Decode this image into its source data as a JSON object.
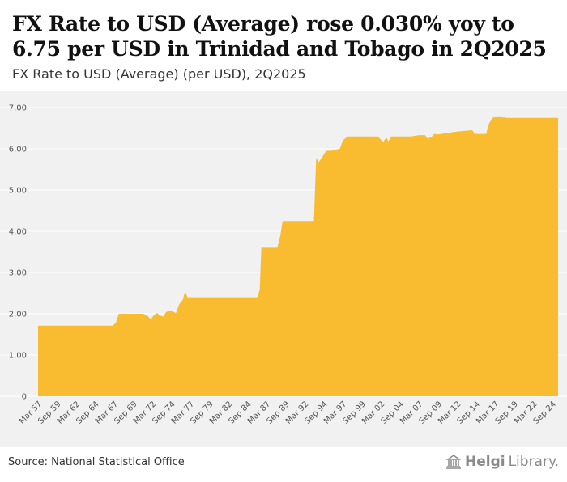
{
  "title": "FX Rate to USD (Average) rose 0.030% yoy to 6.75 per USD in Trinidad and Tobago in 2Q2025",
  "subtitle": "FX Rate to USD (Average) (per USD), 2Q2025",
  "source": "Source: National Statistical Office",
  "logo": {
    "brand": "Helgi",
    "suffix": "Library."
  },
  "colors": {
    "fill": "#f9bb2f",
    "background": "#f1f1f1",
    "grid": "#ffffff"
  },
  "chart_data": {
    "type": "area",
    "title": "FX Rate to USD (Average) rose 0.030% yoy to 6.75 per USD in Trinidad and Tobago in 2Q2025",
    "ylabel": "per USD",
    "ylim": [
      0,
      7
    ],
    "yticks": [
      "0",
      "1.00",
      "2.00",
      "3.00",
      "4.00",
      "5.00",
      "6.00",
      "7.00"
    ],
    "ytick_values": [
      0,
      1,
      2,
      3,
      4,
      5,
      6,
      7
    ],
    "xlim": [
      1957.0,
      2025.25
    ],
    "xticks": [
      "Mar 57",
      "Sep 59",
      "Mar 62",
      "Sep 64",
      "Mar 67",
      "Sep 69",
      "Mar 72",
      "Sep 74",
      "Mar 77",
      "Sep 79",
      "Mar 82",
      "Sep 84",
      "Mar 87",
      "Sep 89",
      "Mar 92",
      "Sep 94",
      "Mar 97",
      "Sep 99",
      "Mar 02",
      "Sep 04",
      "Mar 07",
      "Sep 09",
      "Mar 12",
      "Sep 14",
      "Mar 17",
      "Sep 19",
      "Mar 22",
      "Sep 24"
    ],
    "xtick_values": [
      1957.0,
      1959.5,
      1962.0,
      1964.5,
      1967.0,
      1969.5,
      1972.0,
      1974.5,
      1977.0,
      1979.5,
      1982.0,
      1984.5,
      1987.0,
      1989.5,
      1992.0,
      1994.5,
      1997.0,
      1999.5,
      2002.0,
      2004.5,
      2007.0,
      2009.5,
      2012.0,
      2014.5,
      2017.0,
      2019.5,
      2022.0,
      2024.5
    ],
    "series": [
      {
        "name": "FX Rate to USD (Average)",
        "points": [
          [
            1957.0,
            1.71
          ],
          [
            1966.8,
            1.71
          ],
          [
            1967.2,
            1.78
          ],
          [
            1967.6,
            2.0
          ],
          [
            1970.8,
            2.0
          ],
          [
            1971.3,
            1.96
          ],
          [
            1971.8,
            1.86
          ],
          [
            1972.2,
            1.97
          ],
          [
            1972.6,
            2.02
          ],
          [
            1973.0,
            1.96
          ],
          [
            1973.4,
            1.93
          ],
          [
            1973.8,
            2.04
          ],
          [
            1974.3,
            2.08
          ],
          [
            1974.7,
            2.05
          ],
          [
            1975.1,
            2.02
          ],
          [
            1975.5,
            2.22
          ],
          [
            1976.0,
            2.34
          ],
          [
            1976.3,
            2.55
          ],
          [
            1976.6,
            2.4
          ],
          [
            1985.8,
            2.4
          ],
          [
            1986.1,
            2.6
          ],
          [
            1986.3,
            3.6
          ],
          [
            1988.4,
            3.6
          ],
          [
            1988.8,
            3.9
          ],
          [
            1989.1,
            4.25
          ],
          [
            1993.2,
            4.25
          ],
          [
            1993.5,
            5.78
          ],
          [
            1993.8,
            5.67
          ],
          [
            1994.3,
            5.8
          ],
          [
            1994.8,
            5.95
          ],
          [
            1995.5,
            5.95
          ],
          [
            1996.0,
            5.98
          ],
          [
            1996.6,
            6.0
          ],
          [
            1997.0,
            6.2
          ],
          [
            1997.6,
            6.3
          ],
          [
            2001.6,
            6.3
          ],
          [
            2002.0,
            6.22
          ],
          [
            2002.3,
            6.17
          ],
          [
            2002.7,
            6.27
          ],
          [
            2003.0,
            6.18
          ],
          [
            2003.3,
            6.3
          ],
          [
            2006.0,
            6.3
          ],
          [
            2007.0,
            6.33
          ],
          [
            2007.8,
            6.33
          ],
          [
            2008.1,
            6.25
          ],
          [
            2008.6,
            6.28
          ],
          [
            2009.0,
            6.36
          ],
          [
            2009.6,
            6.35
          ],
          [
            2010.6,
            6.38
          ],
          [
            2011.6,
            6.41
          ],
          [
            2012.6,
            6.43
          ],
          [
            2014.0,
            6.45
          ],
          [
            2014.3,
            6.36
          ],
          [
            2015.8,
            6.36
          ],
          [
            2016.2,
            6.62
          ],
          [
            2016.7,
            6.76
          ],
          [
            2017.6,
            6.77
          ],
          [
            2018.6,
            6.75
          ],
          [
            2025.25,
            6.75
          ]
        ]
      }
    ]
  }
}
